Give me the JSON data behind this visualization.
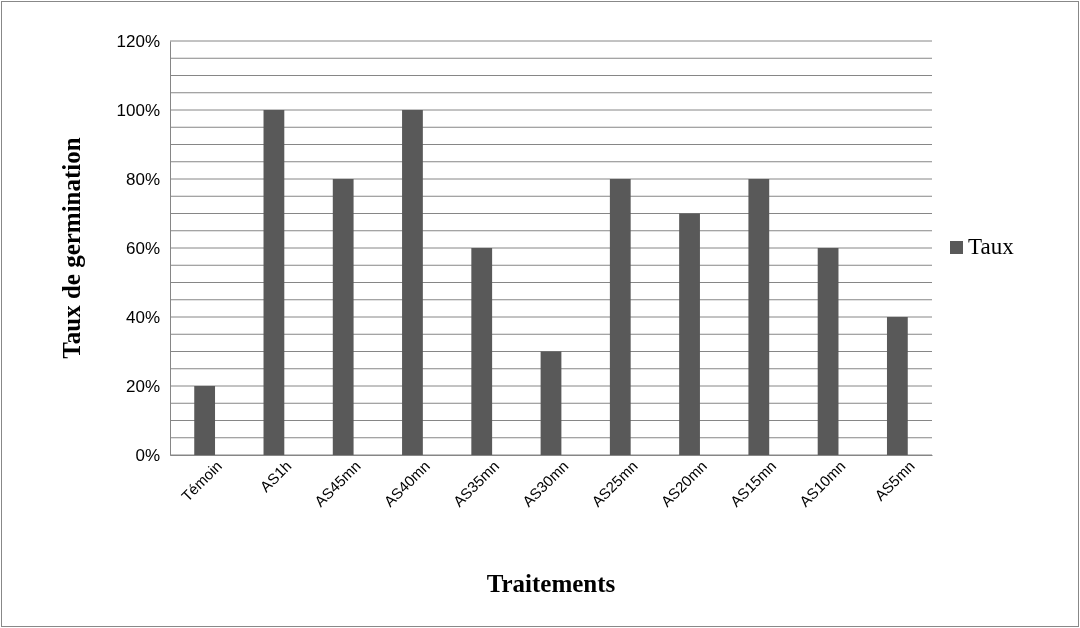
{
  "chart_data": {
    "type": "bar",
    "xlabel": "Traitements",
    "ylabel": "Taux de germination",
    "categories": [
      "Témoin",
      "AS1h",
      "AS45mn",
      "AS40mn",
      "AS35mn",
      "AS30mn",
      "AS25mn",
      "AS20mn",
      "AS15mn",
      "AS10mn",
      "AS5mn"
    ],
    "series": [
      {
        "name": "Taux",
        "color": "#595959",
        "values": [
          20,
          100,
          80,
          100,
          60,
          30,
          80,
          70,
          80,
          60,
          40
        ]
      }
    ],
    "ylim": [
      0,
      120
    ],
    "yticks": [
      {
        "value": 0,
        "label": "0%"
      },
      {
        "value": 5,
        "label": null
      },
      {
        "value": 10,
        "label": null
      },
      {
        "value": 15,
        "label": null
      },
      {
        "value": 20,
        "label": "20%"
      },
      {
        "value": 25,
        "label": null
      },
      {
        "value": 30,
        "label": null
      },
      {
        "value": 35,
        "label": null
      },
      {
        "value": 40,
        "label": "40%"
      },
      {
        "value": 45,
        "label": null
      },
      {
        "value": 50,
        "label": null
      },
      {
        "value": 55,
        "label": null
      },
      {
        "value": 60,
        "label": "60%"
      },
      {
        "value": 65,
        "label": null
      },
      {
        "value": 70,
        "label": null
      },
      {
        "value": 75,
        "label": null
      },
      {
        "value": 80,
        "label": "80%"
      },
      {
        "value": 85,
        "label": null
      },
      {
        "value": 90,
        "label": null
      },
      {
        "value": 95,
        "label": null
      },
      {
        "value": 100,
        "label": "100%"
      },
      {
        "value": 105,
        "label": null
      },
      {
        "value": 110,
        "label": null
      },
      {
        "value": 115,
        "label": null
      },
      {
        "value": 120,
        "label": "120%"
      }
    ],
    "grid": true,
    "legend": "right"
  }
}
